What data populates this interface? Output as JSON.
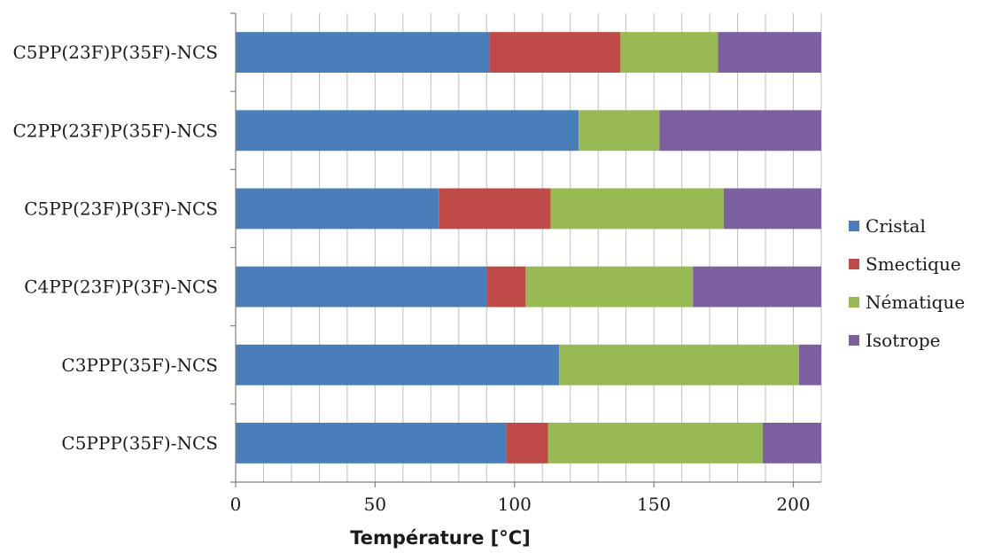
{
  "chart_data": {
    "type": "bar",
    "orientation": "horizontal",
    "stacked": true,
    "categories": [
      "C5PPP(35F)-NCS",
      "C3PPP(35F)-NCS",
      "C4PP(23F)P(3F)-NCS",
      "C5PP(23F)P(3F)-NCS",
      "C2PP(23F)P(35F)-NCS",
      "C5PP(23F)P(35F)-NCS"
    ],
    "series": [
      {
        "name": "Cristal",
        "color": "#4a7ebb",
        "values": [
          97,
          116,
          90,
          73,
          123,
          91
        ]
      },
      {
        "name": "Smectique",
        "color": "#be4b48",
        "values": [
          15,
          0,
          14,
          40,
          0,
          47
        ]
      },
      {
        "name": "Nématique",
        "color": "#98b954",
        "values": [
          77,
          86,
          60,
          62,
          29,
          35
        ]
      },
      {
        "name": "Isotrope",
        "color": "#7d60a0",
        "values": [
          21,
          8,
          46,
          35,
          58,
          37
        ]
      }
    ],
    "xlabel": "Température [°C]",
    "xlim": [
      0,
      210
    ],
    "xticks": [
      0,
      50,
      100,
      150,
      200
    ],
    "minor_grid_step": 10,
    "grid": true,
    "legend_position": "right"
  }
}
